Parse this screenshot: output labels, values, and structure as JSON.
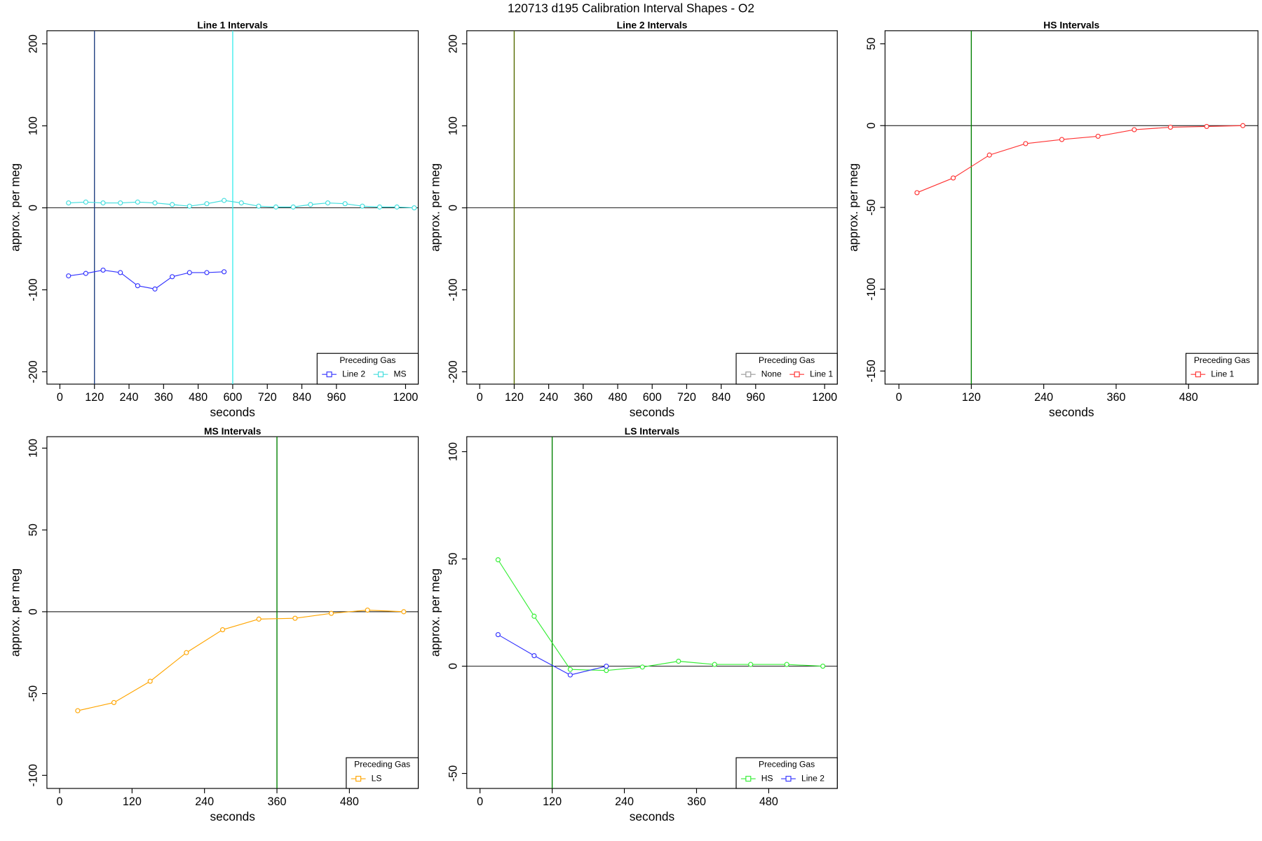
{
  "title": "120713   d195   Calibration Interval Shapes - O2",
  "chart_data": [
    {
      "type": "line",
      "title": "Line 1 Intervals",
      "xlabel": "seconds",
      "ylabel": "approx. per meg",
      "xlim": [
        -45,
        1244
      ],
      "ylim": [
        -215,
        216
      ],
      "xticks": [
        0,
        120,
        240,
        360,
        480,
        600,
        720,
        840,
        960,
        1200
      ],
      "yticks": [
        -200,
        -100,
        0,
        100,
        200
      ],
      "hlines": [
        0
      ],
      "vlines": [
        {
          "value": 120,
          "color": "#1f3f80"
        },
        {
          "value": 600,
          "color": "#40eeee"
        }
      ],
      "legend_title": "Preceding Gas",
      "legend": "bottomright",
      "series": [
        {
          "name": "Line 2",
          "color": "#3333ff",
          "x": [
            30,
            90,
            150,
            210,
            270,
            330,
            390,
            450,
            510,
            570
          ],
          "values": [
            -83,
            -80,
            -76,
            -79,
            -95,
            -99,
            -84,
            -79,
            -79,
            -78
          ]
        },
        {
          "name": "MS",
          "color": "#40dddd",
          "x": [
            30,
            90,
            150,
            210,
            270,
            330,
            390,
            450,
            510,
            570,
            630,
            690,
            750,
            810,
            870,
            930,
            990,
            1050,
            1110,
            1170,
            1230
          ],
          "values": [
            6,
            7,
            6,
            6,
            7,
            6,
            4,
            2,
            5,
            9,
            6,
            2,
            1,
            1,
            4,
            6,
            5,
            2,
            1,
            1,
            0
          ]
        }
      ]
    },
    {
      "type": "line",
      "title": "Line 2 Intervals",
      "xlabel": "seconds",
      "ylabel": "approx. per meg",
      "xlim": [
        -45,
        1244
      ],
      "ylim": [
        -215,
        216
      ],
      "xticks": [
        0,
        120,
        240,
        360,
        480,
        600,
        720,
        840,
        960,
        1200
      ],
      "yticks": [
        -200,
        -100,
        0,
        100,
        200
      ],
      "hlines": [
        0
      ],
      "vlines": [
        {
          "value": 120,
          "color": "#556b00"
        }
      ],
      "legend_title": "Preceding Gas",
      "legend": "bottomright",
      "series": [
        {
          "name": "None",
          "color": "#999999",
          "x": [],
          "values": []
        },
        {
          "name": "Line 1",
          "color": "#ff3333",
          "x": [],
          "values": []
        }
      ]
    },
    {
      "type": "line",
      "title": "HS Intervals",
      "xlabel": "seconds",
      "ylabel": "approx. per meg",
      "xlim": [
        -23,
        595
      ],
      "ylim": [
        -158,
        58
      ],
      "xticks": [
        0,
        120,
        240,
        360,
        480
      ],
      "yticks": [
        -150,
        -100,
        -50,
        0,
        50
      ],
      "hlines": [
        0
      ],
      "vlines": [
        {
          "value": 120,
          "color": "#008000"
        }
      ],
      "legend_title": "Preceding Gas",
      "legend": "bottomright",
      "series": [
        {
          "name": "Line 1",
          "color": "#ff3333",
          "x": [
            30,
            90,
            150,
            210,
            270,
            330,
            390,
            450,
            510,
            570
          ],
          "values": [
            -41,
            -32,
            -18,
            -11,
            -8.5,
            -6.5,
            -2.5,
            -1,
            -0.5,
            0
          ]
        }
      ]
    },
    {
      "type": "line",
      "title": "MS Intervals",
      "xlabel": "seconds",
      "ylabel": "approx. per meg",
      "xlim": [
        -21,
        594
      ],
      "ylim": [
        -108,
        107
      ],
      "xticks": [
        0,
        120,
        240,
        360,
        480
      ],
      "yticks": [
        -100,
        -50,
        0,
        50,
        100
      ],
      "hlines": [
        0
      ],
      "vlines": [
        {
          "value": 360,
          "color": "#008000"
        }
      ],
      "legend_title": "Preceding Gas",
      "legend": "bottomright",
      "series": [
        {
          "name": "LS",
          "color": "#ffa500",
          "x": [
            30,
            90,
            150,
            210,
            270,
            330,
            390,
            450,
            510,
            570
          ],
          "values": [
            -60.5,
            -55.5,
            -42.5,
            -25,
            -11,
            -4.5,
            -4,
            -1,
            1,
            0
          ]
        }
      ]
    },
    {
      "type": "line",
      "title": "LS Intervals",
      "xlabel": "seconds",
      "ylabel": "approx. per meg",
      "xlim": [
        -22,
        594
      ],
      "ylim": [
        -57,
        107
      ],
      "xticks": [
        0,
        120,
        240,
        360,
        480
      ],
      "yticks": [
        -50,
        0,
        50,
        100
      ],
      "hlines": [
        0
      ],
      "vlines": [
        {
          "value": 120,
          "color": "#008000"
        }
      ],
      "legend_title": "Preceding Gas",
      "legend": "bottomright",
      "series": [
        {
          "name": "HS",
          "color": "#33ee33",
          "x": [
            30,
            90,
            150,
            210,
            270,
            330,
            390,
            450,
            510,
            570
          ],
          "values": [
            49.6,
            23.3,
            -1.5,
            -2,
            -0.4,
            2.3,
            0.8,
            0.8,
            0.8,
            0
          ]
        },
        {
          "name": "Line 2",
          "color": "#3333ff",
          "x": [
            30,
            90,
            150,
            210
          ],
          "values": [
            14.7,
            4.9,
            -4.1,
            0
          ]
        }
      ]
    }
  ]
}
